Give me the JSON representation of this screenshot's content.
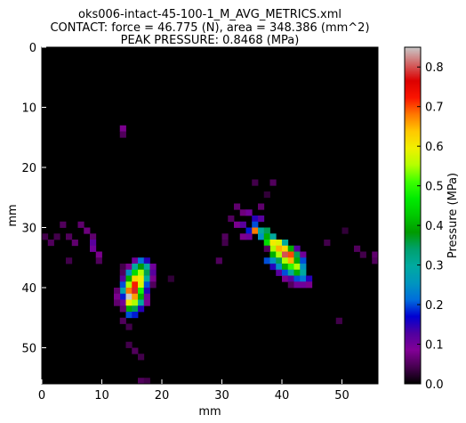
{
  "chart_data": {
    "type": "heatmap",
    "title_lines": [
      "oks006-intact-45-100-1_M_AVG_METRICS.xml",
      "CONTACT: force = 46.775 (N), area = 348.386 (mm^2)",
      "PEAK PRESSURE: 0.8468 (MPa)"
    ],
    "xlabel": "mm",
    "ylabel": "mm",
    "xlim": [
      0,
      56
    ],
    "ylim": [
      0,
      56
    ],
    "x_ticks": [
      0,
      10,
      20,
      30,
      40,
      50
    ],
    "y_ticks": [
      0,
      10,
      20,
      30,
      40,
      50
    ],
    "y_inverted": true,
    "colorbar": {
      "label": "Pressure (MPa)",
      "range": [
        0,
        0.85
      ],
      "ticks": [
        "0.0",
        "0.1",
        "0.2",
        "0.3",
        "0.4",
        "0.5",
        "0.6",
        "0.7",
        "0.8"
      ],
      "colormap": "spectral"
    },
    "background_value": 0,
    "cells": [
      [
        3,
        29,
        0.05
      ],
      [
        6,
        29,
        0.06
      ],
      [
        7,
        30,
        0.07
      ],
      [
        8,
        31,
        0.06
      ],
      [
        5,
        32,
        0.06
      ],
      [
        2,
        31,
        0.04
      ],
      [
        4,
        31,
        0.05
      ],
      [
        0,
        31,
        0.04
      ],
      [
        1,
        32,
        0.05
      ],
      [
        4,
        35,
        0.04
      ],
      [
        8,
        32,
        0.12
      ],
      [
        8,
        33,
        0.1
      ],
      [
        9,
        34,
        0.08
      ],
      [
        9,
        35,
        0.05
      ],
      [
        13,
        36,
        0.04
      ],
      [
        13,
        37,
        0.05
      ],
      [
        13,
        38,
        0.12
      ],
      [
        13,
        39,
        0.2
      ],
      [
        13,
        40,
        0.28
      ],
      [
        13,
        41,
        0.18
      ],
      [
        13,
        42,
        0.1
      ],
      [
        14,
        36,
        0.08
      ],
      [
        14,
        37,
        0.25
      ],
      [
        14,
        38,
        0.4
      ],
      [
        14,
        39,
        0.55
      ],
      [
        14,
        40,
        0.68
      ],
      [
        14,
        41,
        0.85
      ],
      [
        14,
        42,
        0.6
      ],
      [
        14,
        43,
        0.4
      ],
      [
        14,
        44,
        0.2
      ],
      [
        15,
        35,
        0.1
      ],
      [
        15,
        36,
        0.3
      ],
      [
        15,
        37,
        0.45
      ],
      [
        15,
        38,
        0.62
      ],
      [
        15,
        39,
        0.72
      ],
      [
        15,
        40,
        0.78
      ],
      [
        15,
        41,
        0.66
      ],
      [
        15,
        42,
        0.55
      ],
      [
        15,
        43,
        0.35
      ],
      [
        15,
        44,
        0.18
      ],
      [
        16,
        35,
        0.22
      ],
      [
        16,
        36,
        0.38
      ],
      [
        16,
        37,
        0.55
      ],
      [
        16,
        38,
        0.6
      ],
      [
        16,
        39,
        0.58
      ],
      [
        16,
        40,
        0.48
      ],
      [
        16,
        41,
        0.4
      ],
      [
        16,
        42,
        0.3
      ],
      [
        16,
        43,
        0.15
      ],
      [
        17,
        35,
        0.15
      ],
      [
        17,
        36,
        0.3
      ],
      [
        17,
        37,
        0.35
      ],
      [
        17,
        38,
        0.3
      ],
      [
        17,
        39,
        0.2
      ],
      [
        17,
        40,
        0.15
      ],
      [
        17,
        41,
        0.1
      ],
      [
        17,
        42,
        0.08
      ],
      [
        18,
        36,
        0.1
      ],
      [
        18,
        37,
        0.12
      ],
      [
        18,
        38,
        0.08
      ],
      [
        18,
        39,
        0.05
      ],
      [
        12,
        40,
        0.06
      ],
      [
        12,
        41,
        0.08
      ],
      [
        12,
        42,
        0.06
      ],
      [
        13,
        43,
        0.06
      ],
      [
        13,
        45,
        0.05
      ],
      [
        14,
        46,
        0.04
      ],
      [
        14,
        49,
        0.04
      ],
      [
        15,
        50,
        0.05
      ],
      [
        16,
        51,
        0.04
      ],
      [
        16,
        55,
        0.05
      ],
      [
        17,
        55,
        0.04
      ],
      [
        13,
        13,
        0.08
      ],
      [
        13,
        14,
        0.05
      ],
      [
        21,
        38,
        0.03
      ],
      [
        31,
        28,
        0.05
      ],
      [
        32,
        26,
        0.06
      ],
      [
        33,
        27,
        0.07
      ],
      [
        34,
        27,
        0.1
      ],
      [
        35,
        28,
        0.15
      ],
      [
        35,
        29,
        0.2
      ],
      [
        36,
        26,
        0.06
      ],
      [
        36,
        28,
        0.12
      ],
      [
        32,
        29,
        0.08
      ],
      [
        33,
        29,
        0.12
      ],
      [
        34,
        30,
        0.18
      ],
      [
        35,
        30,
        0.68
      ],
      [
        36,
        30,
        0.3
      ],
      [
        37,
        30,
        0.35
      ],
      [
        33,
        31,
        0.08
      ],
      [
        34,
        31,
        0.1
      ],
      [
        36,
        31,
        0.25
      ],
      [
        37,
        31,
        0.4
      ],
      [
        38,
        31,
        0.3
      ],
      [
        37,
        32,
        0.45
      ],
      [
        38,
        32,
        0.6
      ],
      [
        39,
        32,
        0.58
      ],
      [
        40,
        32,
        0.3
      ],
      [
        38,
        33,
        0.55
      ],
      [
        39,
        33,
        0.65
      ],
      [
        40,
        33,
        0.62
      ],
      [
        41,
        33,
        0.4
      ],
      [
        42,
        33,
        0.12
      ],
      [
        38,
        34,
        0.4
      ],
      [
        39,
        34,
        0.55
      ],
      [
        40,
        34,
        0.8
      ],
      [
        41,
        34,
        0.7
      ],
      [
        42,
        34,
        0.35
      ],
      [
        43,
        34,
        0.1
      ],
      [
        37,
        35,
        0.2
      ],
      [
        38,
        35,
        0.25
      ],
      [
        39,
        35,
        0.35
      ],
      [
        40,
        35,
        0.55
      ],
      [
        41,
        35,
        0.65
      ],
      [
        42,
        35,
        0.4
      ],
      [
        43,
        35,
        0.2
      ],
      [
        38,
        36,
        0.15
      ],
      [
        39,
        36,
        0.25
      ],
      [
        40,
        36,
        0.4
      ],
      [
        41,
        36,
        0.5
      ],
      [
        42,
        36,
        0.55
      ],
      [
        43,
        36,
        0.25
      ],
      [
        39,
        37,
        0.12
      ],
      [
        40,
        37,
        0.2
      ],
      [
        41,
        37,
        0.3
      ],
      [
        42,
        37,
        0.4
      ],
      [
        43,
        37,
        0.3
      ],
      [
        40,
        38,
        0.08
      ],
      [
        41,
        38,
        0.12
      ],
      [
        42,
        38,
        0.2
      ],
      [
        43,
        38,
        0.22
      ],
      [
        44,
        38,
        0.15
      ],
      [
        41,
        39,
        0.05
      ],
      [
        42,
        39,
        0.1
      ],
      [
        43,
        39,
        0.1
      ],
      [
        44,
        39,
        0.08
      ],
      [
        30,
        31,
        0.05
      ],
      [
        30,
        32,
        0.04
      ],
      [
        37,
        33,
        0.05
      ],
      [
        35,
        22,
        0.04
      ],
      [
        38,
        22,
        0.05
      ],
      [
        37,
        24,
        0.03
      ],
      [
        29,
        35,
        0.05
      ],
      [
        47,
        32,
        0.04
      ],
      [
        52,
        33,
        0.05
      ],
      [
        53,
        34,
        0.04
      ],
      [
        55,
        34,
        0.06
      ],
      [
        55,
        35,
        0.05
      ],
      [
        50,
        30,
        0.03
      ],
      [
        49,
        45,
        0.04
      ]
    ]
  }
}
